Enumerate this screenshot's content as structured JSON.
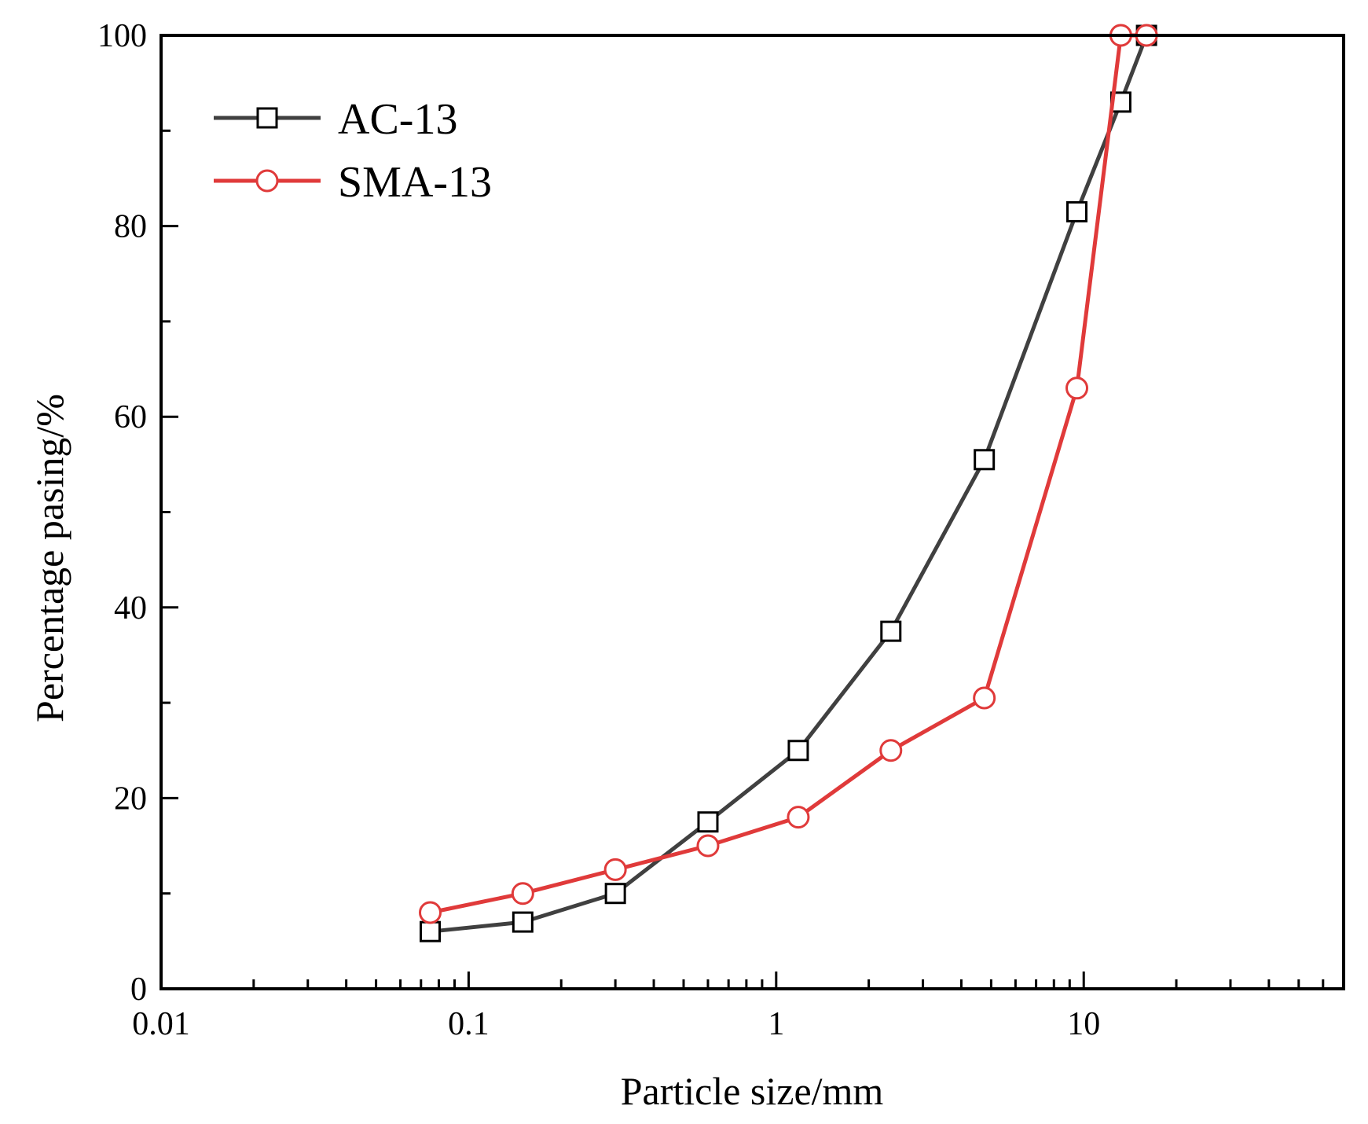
{
  "chart_data": {
    "type": "line",
    "xscale": "log",
    "title": "",
    "xlabel": "Particle size/mm",
    "ylabel": "Percentage pasing/%",
    "xlim": [
      0.01,
      70
    ],
    "ylim": [
      0,
      100
    ],
    "x_ticks": [
      0.01,
      0.1,
      1,
      10
    ],
    "x_tick_labels": [
      "0.01",
      "0.1",
      "1",
      "10"
    ],
    "y_ticks": [
      0,
      20,
      40,
      60,
      80,
      100
    ],
    "y_tick_labels": [
      "0",
      "20",
      "40",
      "60",
      "80",
      "100"
    ],
    "legend_position": "top-left",
    "series": [
      {
        "name": "AC-13",
        "color": "#404040",
        "marker": "square",
        "x": [
          0.075,
          0.15,
          0.3,
          0.6,
          1.18,
          2.36,
          4.75,
          9.5,
          13.2,
          16
        ],
        "y": [
          6,
          7,
          10,
          17.5,
          25,
          37.5,
          55.5,
          81.5,
          93,
          100
        ]
      },
      {
        "name": "SMA-13",
        "color": "#e03a3a",
        "marker": "circle",
        "x": [
          0.075,
          0.15,
          0.3,
          0.6,
          1.18,
          2.36,
          4.75,
          9.5,
          13.2,
          16
        ],
        "y": [
          8,
          10,
          12.5,
          15,
          18,
          25,
          30.5,
          63,
          100,
          100
        ]
      }
    ]
  }
}
